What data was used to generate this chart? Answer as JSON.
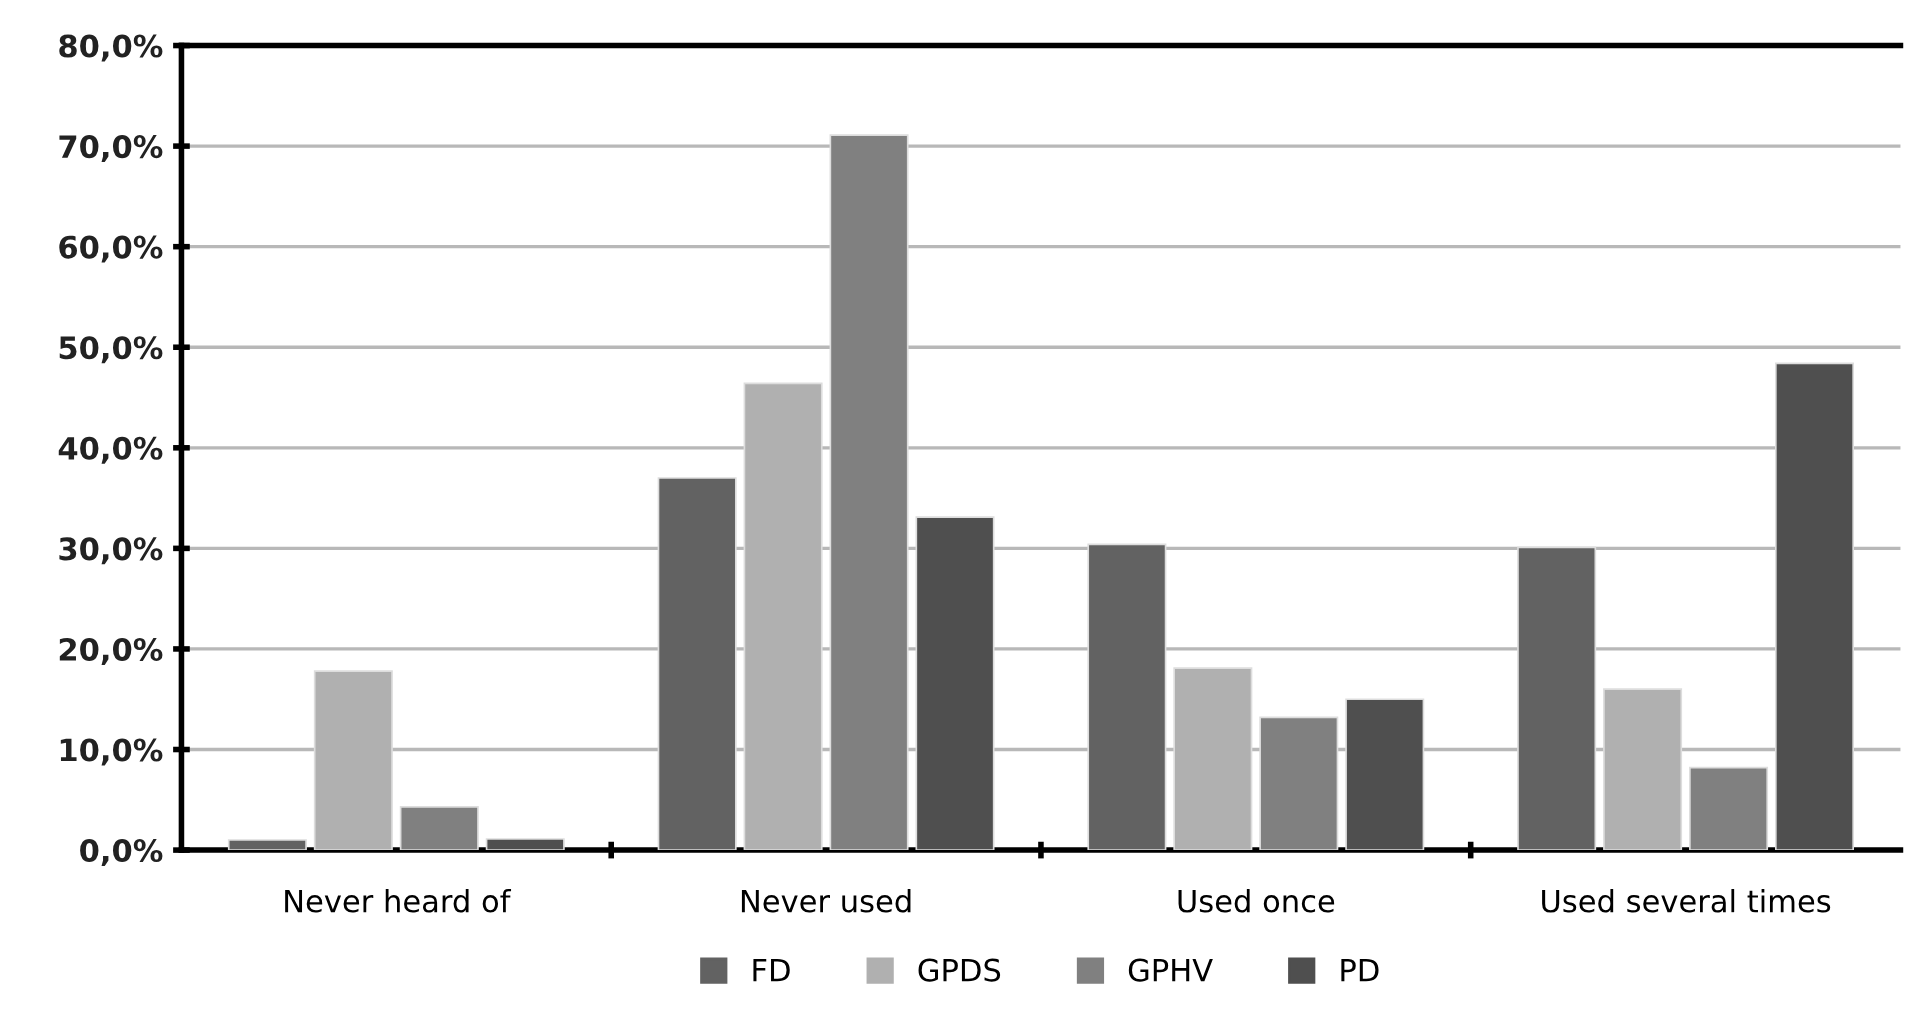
{
  "chart_data": {
    "type": "bar",
    "categories": [
      "Never heard of",
      "Never used",
      "Used once",
      "Used several times"
    ],
    "series": [
      {
        "name": "FD",
        "color": "#626262",
        "values": [
          1.0,
          37.0,
          30.4,
          30.1
        ]
      },
      {
        "name": "GPDS",
        "color": "#b0b0b0",
        "values": [
          17.8,
          46.4,
          18.1,
          16.0
        ]
      },
      {
        "name": "GPHV",
        "color": "#808080",
        "values": [
          4.3,
          71.1,
          13.2,
          8.2
        ]
      },
      {
        "name": "PD",
        "color": "#4f4f4f",
        "values": [
          1.1,
          33.1,
          15.0,
          48.4
        ]
      }
    ],
    "ylim": [
      0,
      80
    ],
    "yticks": [
      {
        "value": 0,
        "label": "0,0%"
      },
      {
        "value": 10,
        "label": "10,0%"
      },
      {
        "value": 20,
        "label": "20,0%"
      },
      {
        "value": 30,
        "label": "30,0%"
      },
      {
        "value": 40,
        "label": "40,0%"
      },
      {
        "value": 50,
        "label": "50,0%"
      },
      {
        "value": 60,
        "label": "60,0%"
      },
      {
        "value": 70,
        "label": "70,0%"
      },
      {
        "value": 80,
        "label": "80,0%"
      }
    ],
    "grid": "y",
    "legend": "bottom"
  }
}
